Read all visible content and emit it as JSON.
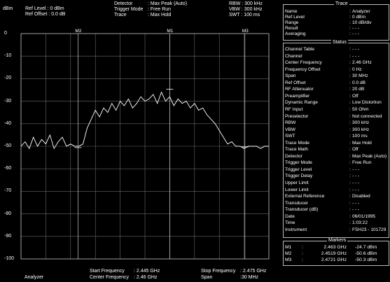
{
  "header": {
    "unit": "dBm",
    "ref_level_label": "Ref Level : 0   dBm",
    "ref_offset_label": "Ref Offset : 0.0 dB",
    "detector_label": "Detector",
    "detector_value": ": Max Peak (Auto)",
    "trigger_mode_label": "Trigger Mode",
    "trigger_mode_value": ": Free Run",
    "trace_label": "Trace",
    "trace_value": ": Max Hold",
    "rbw_label": "RBW : 300 kHz",
    "vbw_label": "VBW : 300 kHz",
    "swt_label": "SWT : 100 ms"
  },
  "footer": {
    "mode": "Analyzer",
    "start_freq_label": "Start Frequency",
    "start_freq_value": ": 2.445  GHz",
    "center_freq_label": "Center Frequency",
    "center_freq_value": ": 2.46   GHz",
    "stop_freq_label": "Stop Frequency",
    "stop_freq_value": ": 2.475 GHz",
    "span_label": "Span",
    "span_value": ":30      MHz"
  },
  "chart_data": {
    "type": "line",
    "x_range_ghz": [
      2.445,
      2.475
    ],
    "ylim": [
      -100,
      0
    ],
    "y_ticks": [
      "0",
      "-10",
      "-20",
      "-30",
      "-40",
      "-50",
      "-60",
      "-70",
      "-80",
      "-90",
      "-100"
    ],
    "grid": true,
    "marker_labels": [
      "M2",
      "M1",
      "M3"
    ],
    "series": [
      {
        "x_ghz": [
          2.445,
          2.4455,
          2.446,
          2.4465,
          2.447,
          2.4475,
          2.448,
          2.4485,
          2.449,
          2.4495,
          2.45,
          2.4505,
          2.451,
          2.4515,
          2.452,
          2.4525,
          2.453,
          2.4535,
          2.454,
          2.4545,
          2.455,
          2.4555,
          2.456,
          2.4565,
          2.457,
          2.4575,
          2.458,
          2.4585,
          2.459,
          2.4595,
          2.46,
          2.4605,
          2.461,
          2.4615,
          2.462,
          2.4625,
          2.463,
          2.4635,
          2.464,
          2.4645,
          2.465,
          2.4655,
          2.466,
          2.4665,
          2.467,
          2.4675,
          2.468,
          2.4685,
          2.469,
          2.4695,
          2.47,
          2.4705,
          2.471,
          2.4715,
          2.472,
          2.4725,
          2.473,
          2.4735,
          2.474,
          2.4745,
          2.475
        ],
        "values": [
          -50,
          -48,
          -51,
          -46,
          -50,
          -47,
          -49,
          -45,
          -51,
          -48,
          -46,
          -50,
          -49,
          -50,
          -50,
          -49,
          -42,
          -38,
          -34,
          -37,
          -33,
          -35,
          -31,
          -34,
          -30,
          -32,
          -29,
          -33,
          -31,
          -28,
          -30,
          -29,
          -27,
          -31,
          -26,
          -30,
          -28,
          -32,
          -29,
          -31,
          -30,
          -33,
          -31,
          -34,
          -33,
          -36,
          -38,
          -40,
          -43,
          -46,
          -49,
          -48,
          -50,
          -50,
          -51,
          -50,
          -50,
          -50,
          -51,
          -50,
          -50
        ]
      }
    ]
  },
  "trace_box": {
    "title": "Trace",
    "rows": [
      {
        "k": "Name",
        "v": "Analyzer"
      },
      {
        "k": "Ref Level",
        "v": "  0    dBm"
      },
      {
        "k": "Range",
        "v": "10 dB/div"
      },
      {
        "k": "Result",
        "v": "- - -"
      },
      {
        "k": "Averaging",
        "v": "- - -"
      }
    ]
  },
  "status_box": {
    "title": "Status",
    "rows": [
      {
        "k": "Channel Table",
        "v": "- - -"
      },
      {
        "k": "Channel",
        "v": "- - -"
      },
      {
        "k": "Center Frequency",
        "v": "   2.46 GHz"
      },
      {
        "k": "Frequency Offset",
        "v": "   0    Hz"
      },
      {
        "k": "Span",
        "v": "  30    MHz"
      },
      {
        "k": "Ref Offset",
        "v": "   0.0  dB"
      },
      {
        "k": "RF Attenuator",
        "v": "  20    dB"
      },
      {
        "k": "Preamplifier",
        "v": "Off"
      },
      {
        "k": "Dynamic Range",
        "v": "Low Distortion"
      },
      {
        "k": "RF Input",
        "v": "  50    Ohm"
      },
      {
        "k": "Preselector",
        "v": "Not connected"
      },
      {
        "k": "RBW",
        "v": "300    kHz"
      },
      {
        "k": "VBW",
        "v": "300    kHz"
      },
      {
        "k": "SWT",
        "v": "100    ms"
      },
      {
        "k": "Trace Mode",
        "v": "Max Hold"
      },
      {
        "k": "Trace Math",
        "v": "Off"
      },
      {
        "k": "Detector",
        "v": "Max Peak (Auto)"
      },
      {
        "k": "Trigger Mode",
        "v": "Free Run"
      },
      {
        "k": "Trigger Level",
        "v": "- - -"
      },
      {
        "k": "Trigger Delay",
        "v": "- - -"
      },
      {
        "k": "Upper Limit",
        "v": "- - -"
      },
      {
        "k": "Lower Limit",
        "v": "- - -"
      },
      {
        "k": "External Reference",
        "v": "Disabled"
      },
      {
        "k": "Transducer",
        "v": "- - -"
      },
      {
        "k": "Transducer (dB)",
        "v": "- - -"
      },
      {
        "k": "Date",
        "v": "06/01/1995"
      },
      {
        "k": "Time",
        "v": "1:03:22"
      },
      {
        "k": "Instrument",
        "v": "FSH23 - 101729"
      }
    ]
  },
  "markers_box": {
    "title": "Markers",
    "rows": [
      {
        "k": "M1",
        "f": "2.463 GHz",
        "p": "-24.7 dBm"
      },
      {
        "k": "M2",
        "f": "2.4519 GHz",
        "p": "-50.6 dBm"
      },
      {
        "k": "M3",
        "f": "2.4721 GHz",
        "p": "-50.3 dBm"
      }
    ]
  }
}
